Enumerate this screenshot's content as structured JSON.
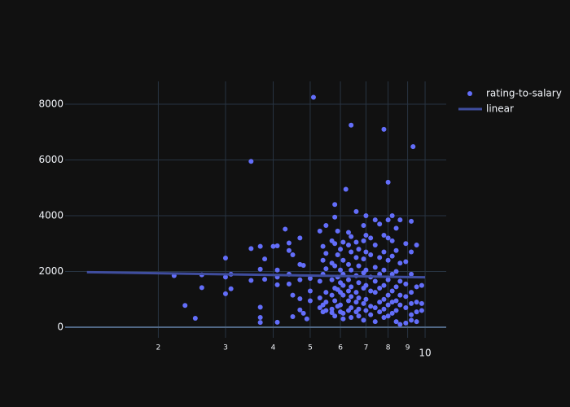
{
  "chart_data": {
    "type": "scatter",
    "xscale": "log",
    "xlim": [
      1.14,
      11.36
    ],
    "ylim": [
      -380,
      8818
    ],
    "xticks": [
      2,
      3,
      4,
      5,
      6,
      7,
      8,
      9,
      10
    ],
    "yticks": [
      0,
      2000,
      4000,
      6000,
      8000
    ],
    "grid": true,
    "legend": "upper right",
    "series": [
      {
        "name": "rating-to-salary",
        "mode": "markers",
        "color": "#636efa",
        "x": [
          5.1,
          6.4,
          7.8,
          3.5,
          9.3,
          8,
          6.2,
          6.6,
          5.8,
          2.2,
          2.35,
          2.5,
          2.6,
          2.6,
          3,
          3,
          3,
          3.1,
          3.1,
          3.5,
          3.5,
          3.7,
          3.7,
          3.7,
          3.7,
          3.7,
          3.8,
          3.8,
          4,
          4.1,
          4.1,
          4.1,
          4.1,
          4.1,
          4.3,
          4.4,
          4.4,
          4.4,
          4.4,
          4.5,
          4.5,
          4.5,
          4.7,
          4.7,
          4.7,
          4.7,
          4.7,
          4.8,
          4.8,
          4.9,
          5,
          5,
          5,
          5.3,
          5.3,
          5.3,
          5.3,
          5.4,
          5.4,
          5.4,
          5.4,
          5.4,
          5.5,
          5.5,
          5.5,
          5.5,
          5.5,
          5.5,
          5.7,
          5.7,
          5.7,
          5.7,
          5.7,
          5.7,
          5.8,
          5.8,
          5.8,
          5.8,
          5.8,
          5.8,
          5.9,
          5.9,
          5.9,
          5.9,
          5.9,
          6,
          6,
          6,
          6,
          6,
          6,
          6.1,
          6.1,
          6.1,
          6.1,
          6.1,
          6.1,
          6.1,
          6.3,
          6.3,
          6.3,
          6.3,
          6.3,
          6.3,
          6.3,
          6.4,
          6.4,
          6.4,
          6.4,
          6.4,
          6.4,
          6.4,
          6.6,
          6.6,
          6.6,
          6.6,
          6.6,
          6.6,
          6.7,
          6.7,
          6.7,
          6.7,
          6.7,
          6.7,
          6.9,
          6.9,
          6.9,
          6.9,
          6.9,
          6.9,
          6.9,
          7,
          7,
          7,
          7,
          7,
          7,
          7,
          7.2,
          7.2,
          7.2,
          7.2,
          7.2,
          7.2,
          7.4,
          7.4,
          7.4,
          7.4,
          7.4,
          7.4,
          7.4,
          7.6,
          7.6,
          7.6,
          7.6,
          7.6,
          7.6,
          7.8,
          7.8,
          7.8,
          7.8,
          7.8,
          7.8,
          7.8,
          8,
          8,
          8,
          8,
          8,
          8,
          8,
          8.2,
          8.2,
          8.2,
          8.2,
          8.2,
          8.2,
          8.2,
          8.4,
          8.4,
          8.4,
          8.4,
          8.4,
          8.4,
          8.4,
          8.6,
          8.6,
          8.6,
          8.6,
          8.6,
          8.6,
          8.9,
          8.9,
          8.9,
          8.9,
          8.9,
          8.9,
          9.2,
          9.2,
          9.2,
          9.2,
          9.2,
          9.2,
          9.2,
          9.5,
          9.5,
          9.5,
          9.5,
          9.5,
          9.8,
          9.8,
          9.8
        ],
        "values": [
          8250,
          7250,
          7100,
          5950,
          6480,
          5200,
          4950,
          4150,
          4400,
          1850,
          780,
          320,
          1880,
          1420,
          2480,
          1800,
          1200,
          1900,
          1380,
          2820,
          1680,
          2900,
          2080,
          720,
          350,
          170,
          2450,
          1720,
          2900,
          2920,
          2050,
          1800,
          1520,
          180,
          3520,
          3020,
          2750,
          1900,
          1550,
          2600,
          1150,
          380,
          3200,
          2250,
          1700,
          1020,
          620,
          2220,
          500,
          300,
          1750,
          1300,
          950,
          3450,
          1650,
          1050,
          700,
          2900,
          2400,
          1900,
          800,
          550,
          3650,
          2650,
          2100,
          1250,
          900,
          600,
          3100,
          2300,
          1700,
          1150,
          650,
          520,
          3950,
          3000,
          2200,
          1400,
          950,
          400,
          3450,
          2600,
          1800,
          1350,
          750,
          2800,
          2050,
          1600,
          1250,
          800,
          550,
          3050,
          2400,
          1900,
          1500,
          1150,
          500,
          300,
          3400,
          2950,
          2250,
          1700,
          1300,
          950,
          600,
          3250,
          2700,
          2050,
          1450,
          1100,
          700,
          350,
          3050,
          2500,
          1850,
          1250,
          900,
          550,
          2800,
          2200,
          1600,
          1050,
          650,
          400,
          3650,
          3100,
          2450,
          1950,
          1400,
          850,
          250,
          4000,
          3300,
          2700,
          2050,
          1500,
          1000,
          600,
          3200,
          2600,
          1800,
          1300,
          750,
          450,
          3850,
          2950,
          2150,
          1650,
          1250,
          700,
          200,
          3700,
          2500,
          1900,
          1400,
          900,
          550,
          3300,
          2700,
          2050,
          1500,
          1000,
          650,
          350,
          3850,
          3200,
          2400,
          1700,
          1150,
          800,
          400,
          4000,
          3100,
          2550,
          1900,
          1300,
          900,
          500,
          3550,
          2750,
          2000,
          1450,
          950,
          600,
          200,
          3850,
          2300,
          1650,
          1150,
          800,
          100,
          3000,
          2350,
          1550,
          1100,
          700,
          150,
          3800,
          2700,
          1900,
          1250,
          850,
          450,
          250,
          2950,
          1450,
          900,
          550,
          200,
          1500,
          850,
          600
        ]
      },
      {
        "name": "linear",
        "mode": "lines",
        "color": "#3f4d9e",
        "x": [
          1.3,
          10
        ],
        "values": [
          1975,
          1790
        ]
      }
    ]
  }
}
